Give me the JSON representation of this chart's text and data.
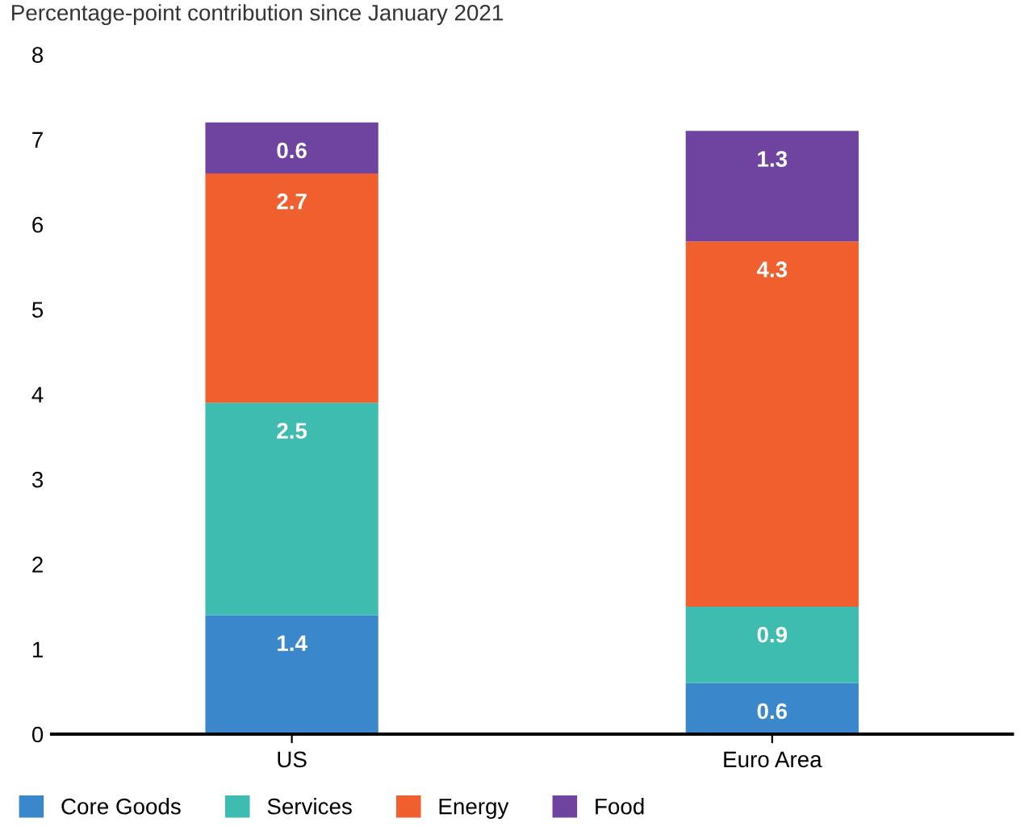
{
  "chart_data": {
    "type": "bar",
    "subtitle": "Percentage-point contribution since January 2021",
    "categories": [
      "US",
      "Euro Area"
    ],
    "series": [
      {
        "name": "Core Goods",
        "color": "#3a87cc",
        "values": [
          1.4,
          0.6
        ]
      },
      {
        "name": "Services",
        "color": "#3dbcaf",
        "values": [
          2.5,
          0.9
        ]
      },
      {
        "name": "Energy",
        "color": "#f0602f",
        "values": [
          2.7,
          4.3
        ]
      },
      {
        "name": "Food",
        "color": "#6e44a0",
        "values": [
          0.6,
          1.3
        ]
      }
    ],
    "stacked": true,
    "data_labels": true,
    "ylim": [
      0,
      8
    ],
    "yticks": [
      0,
      1,
      2,
      3,
      4,
      5,
      6,
      7,
      8
    ],
    "grid": false,
    "legend": "bottom left"
  }
}
